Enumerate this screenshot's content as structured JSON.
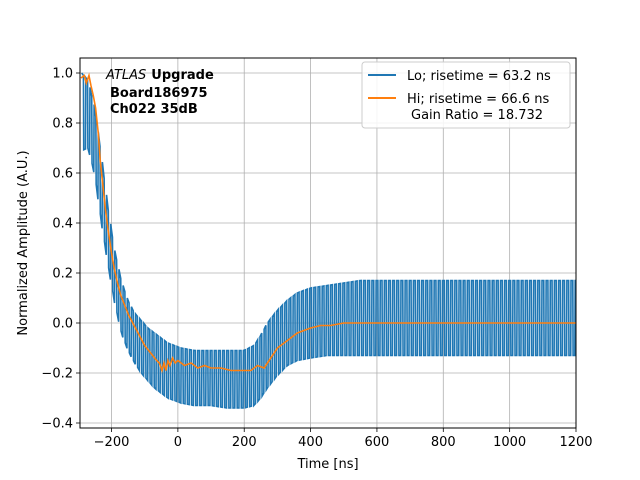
{
  "chart_data": {
    "type": "line",
    "title": "",
    "xlabel": "Time [ns]",
    "ylabel": "Normalized Amplitude (A.U.)",
    "xlim": [
      -295,
      1200
    ],
    "ylim": [
      -0.42,
      1.06
    ],
    "xticks": [
      -200,
      0,
      200,
      400,
      600,
      800,
      1000,
      1200
    ],
    "yticks": [
      -0.4,
      -0.2,
      0.0,
      0.2,
      0.4,
      0.6,
      0.8,
      1.0
    ],
    "xtick_labels": [
      "−200",
      "0",
      "200",
      "400",
      "600",
      "800",
      "1000",
      "1200"
    ],
    "ytick_labels": [
      "−0.4",
      "−0.2",
      "0.0",
      "0.2",
      "0.4",
      "0.6",
      "0.8",
      "1.0"
    ],
    "grid": true,
    "legend_position": "top-right",
    "annotation": {
      "experiment_italic": "ATLAS",
      "experiment_bold": "Upgrade",
      "board": "Board186975",
      "channel": "Ch022 35dB"
    },
    "series": [
      {
        "name": "Lo; risetime = 63.2 ns",
        "color": "#1f77b4",
        "style": "oscillating",
        "period_ns": 12.5,
        "amplitude_rise": [
          [
            -290,
            0.0
          ],
          [
            -240,
            0.07
          ],
          [
            -200,
            0.11
          ],
          [
            -150,
            0.15
          ],
          [
            -100,
            0.16
          ],
          [
            -50,
            0.17
          ],
          [
            0,
            0.16
          ],
          [
            100,
            0.16
          ],
          [
            200,
            0.16
          ],
          [
            300,
            0.16
          ],
          [
            400,
            0.16
          ],
          [
            600,
            0.17
          ],
          [
            1200,
            0.17
          ]
        ],
        "x": [
          -290,
          -270,
          -250,
          -230,
          -210,
          -190,
          -170,
          -150,
          -130,
          -110,
          -90,
          -70,
          -50,
          -30,
          -10,
          10,
          50,
          100,
          150,
          200,
          230,
          250,
          270,
          300,
          330,
          360,
          400,
          450,
          500,
          550,
          600,
          700,
          800,
          900,
          1000,
          1100,
          1200
        ],
        "upper": [
          1.0,
          0.97,
          0.86,
          0.67,
          0.46,
          0.29,
          0.17,
          0.09,
          0.04,
          0.01,
          -0.02,
          -0.04,
          -0.06,
          -0.08,
          -0.09,
          -0.1,
          -0.11,
          -0.11,
          -0.11,
          -0.11,
          -0.09,
          -0.05,
          0.0,
          0.05,
          0.09,
          0.12,
          0.14,
          0.15,
          0.16,
          0.17,
          0.17,
          0.17,
          0.17,
          0.17,
          0.17,
          0.17,
          0.17
        ],
        "lower": [
          0.69,
          0.7,
          0.59,
          0.4,
          0.23,
          0.08,
          -0.04,
          -0.11,
          -0.16,
          -0.2,
          -0.23,
          -0.26,
          -0.28,
          -0.3,
          -0.31,
          -0.32,
          -0.33,
          -0.33,
          -0.34,
          -0.34,
          -0.33,
          -0.3,
          -0.26,
          -0.21,
          -0.17,
          -0.15,
          -0.14,
          -0.13,
          -0.13,
          -0.13,
          -0.13,
          -0.13,
          -0.13,
          -0.13,
          -0.13,
          -0.13,
          -0.13
        ]
      },
      {
        "name": "Hi; risetime = 66.6 ns",
        "name_line2": "Gain Ratio = 18.732",
        "color": "#ff7f0e",
        "style": "line",
        "x": [
          -292,
          -282,
          -276,
          -268,
          -262,
          -255,
          -248,
          -240,
          -234,
          -226,
          -218,
          -210,
          -200,
          -192,
          -182,
          -172,
          -160,
          -148,
          -136,
          -124,
          -112,
          -100,
          -88,
          -76,
          -64,
          -56,
          -48,
          -42,
          -36,
          -30,
          -24,
          -16,
          -8,
          0,
          20,
          40,
          60,
          80,
          100,
          130,
          160,
          190,
          220,
          240,
          260,
          280,
          300,
          320,
          340,
          360,
          380,
          400,
          430,
          460,
          500,
          540,
          600,
          700,
          800,
          900,
          1000,
          1100,
          1200
        ],
        "y": [
          0.98,
          0.99,
          0.96,
          0.99,
          0.95,
          0.91,
          0.86,
          0.76,
          0.65,
          0.55,
          0.45,
          0.37,
          0.28,
          0.22,
          0.16,
          0.11,
          0.07,
          0.03,
          0.0,
          -0.03,
          -0.06,
          -0.09,
          -0.11,
          -0.13,
          -0.15,
          -0.16,
          -0.19,
          -0.16,
          -0.19,
          -0.15,
          -0.17,
          -0.14,
          -0.16,
          -0.15,
          -0.17,
          -0.16,
          -0.18,
          -0.17,
          -0.18,
          -0.18,
          -0.19,
          -0.19,
          -0.19,
          -0.17,
          -0.18,
          -0.14,
          -0.1,
          -0.08,
          -0.06,
          -0.04,
          -0.03,
          -0.02,
          -0.01,
          -0.01,
          0.0,
          0.0,
          0.0,
          0.0,
          0.0,
          0.0,
          0.0,
          0.0,
          0.0
        ]
      }
    ]
  }
}
